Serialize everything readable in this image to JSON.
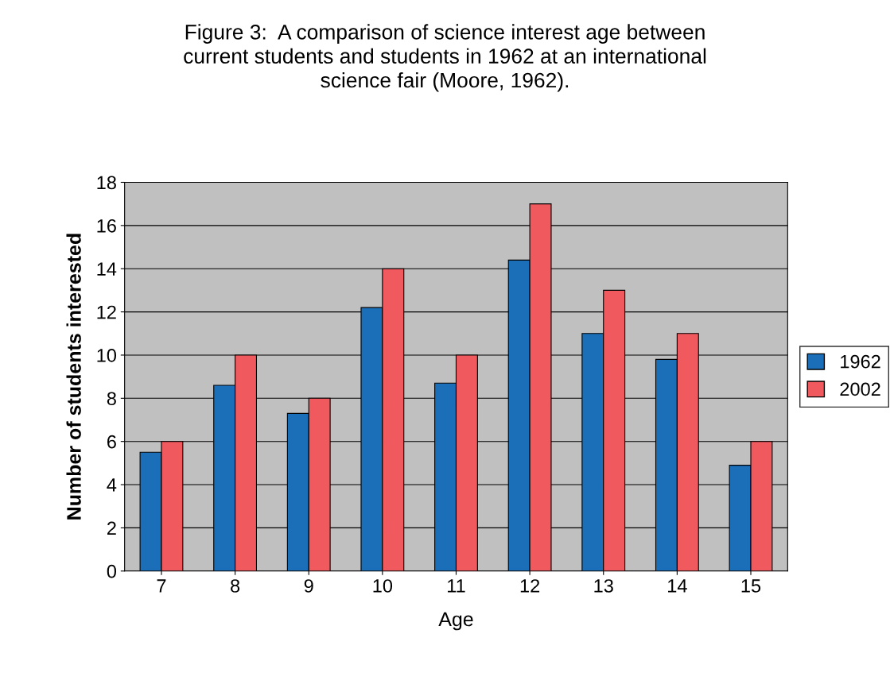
{
  "chart_data": {
    "type": "bar",
    "title": "Figure 3:  A comparison of science interest age between\ncurrent students and students in 1962 at an international\nscience fair (Moore, 1962).",
    "xlabel": "Age",
    "ylabel": "Number of students interested",
    "categories": [
      "7",
      "8",
      "9",
      "10",
      "11",
      "12",
      "13",
      "14",
      "15"
    ],
    "series": [
      {
        "name": "1962",
        "color": "#1b6fb8",
        "values": [
          5.5,
          8.6,
          7.3,
          12.2,
          8.7,
          14.4,
          11.0,
          9.8,
          4.9
        ]
      },
      {
        "name": "2002",
        "color": "#f05a5f",
        "values": [
          6,
          10,
          8,
          14,
          10,
          17,
          13,
          11,
          6
        ]
      }
    ],
    "ylim": [
      0,
      18
    ],
    "yticks": [
      0,
      2,
      4,
      6,
      8,
      10,
      12,
      14,
      16,
      18
    ],
    "grid": "y",
    "legend": "right"
  }
}
